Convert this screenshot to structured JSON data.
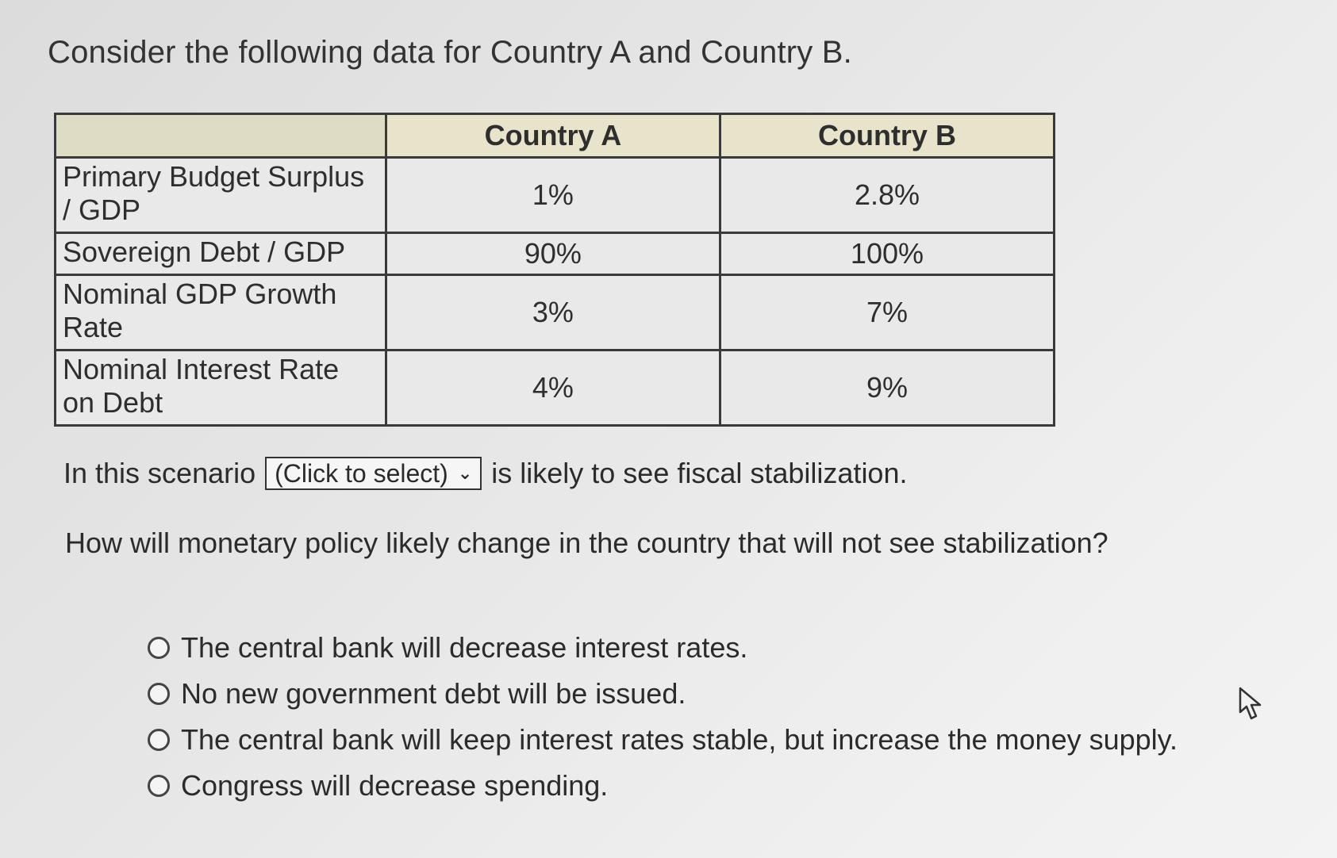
{
  "heading": "Consider the following data for Country A and Country B.",
  "table": {
    "columns": [
      "",
      "Country A",
      "Country B"
    ],
    "rows": [
      {
        "label": "Primary Budget Surplus / GDP",
        "a": "1%",
        "b": "2.8%"
      },
      {
        "label": "Sovereign Debt / GDP",
        "a": "90%",
        "b": "100%"
      },
      {
        "label": "Nominal GDP Growth Rate",
        "a": "3%",
        "b": "7%"
      },
      {
        "label": "Nominal Interest Rate on Debt",
        "a": "4%",
        "b": "9%"
      }
    ]
  },
  "scenario": {
    "before": "In this scenario",
    "select_value": "(Click to select)",
    "after": "is likely to see fiscal stabilization."
  },
  "question": "How will monetary policy likely change in the country that will not see stabilization?",
  "options": [
    "The central bank will decrease interest rates.",
    "No new government debt will be issued.",
    "The central bank will keep interest rates stable, but increase the money supply.",
    "Congress will decrease spending."
  ]
}
